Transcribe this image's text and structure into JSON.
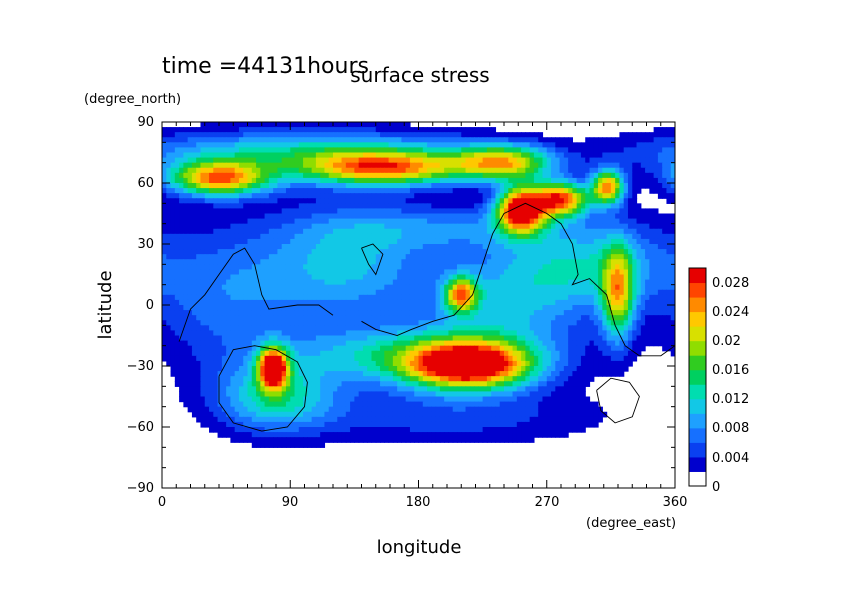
{
  "chart_data": {
    "type": "heatmap",
    "title": "surface stress",
    "subtitle": "time =44131hours",
    "xlabel": "longitude",
    "ylabel": "latitude",
    "x_unit": "(degree_east)",
    "y_unit": "(degree_north)",
    "xlim": [
      0,
      360
    ],
    "ylim": [
      -90,
      90
    ],
    "x_ticks": [
      "0",
      "90",
      "180",
      "270",
      "360"
    ],
    "y_ticks": [
      "90",
      "60",
      "30",
      "0",
      "−30",
      "−60",
      "−90"
    ],
    "colorbar": {
      "labels": [
        "0.028",
        "0.024",
        "0.02",
        "0.016",
        "0.012",
        "0.008",
        "0.004",
        "0"
      ],
      "levels": [
        0,
        0.002,
        0.004,
        0.006,
        0.008,
        0.01,
        0.012,
        0.014,
        0.016,
        0.018,
        0.02,
        0.022,
        0.024,
        0.026,
        0.028
      ],
      "colors": [
        "#ffffff",
        "#0000cd",
        "#0a40f0",
        "#1670ff",
        "#1ea0ff",
        "#12c8e6",
        "#00ddb0",
        "#00d060",
        "#30cc20",
        "#90dd00",
        "#d8e000",
        "#ffc800",
        "#ff8a00",
        "#ff4500",
        "#e60000"
      ]
    },
    "field_centers": [
      {
        "lon": 40,
        "lat": 62,
        "value": 0.024,
        "sx": 25,
        "sy": 6
      },
      {
        "lon": 155,
        "lat": 67,
        "value": 0.022,
        "sx": 40,
        "sy": 6
      },
      {
        "lon": 240,
        "lat": 70,
        "value": 0.02,
        "sx": 25,
        "sy": 6
      },
      {
        "lon": 100,
        "lat": 75,
        "value": 0.012,
        "sx": 90,
        "sy": 8
      },
      {
        "lon": 252,
        "lat": 47,
        "value": 0.03,
        "sx": 12,
        "sy": 8
      },
      {
        "lon": 280,
        "lat": 52,
        "value": 0.026,
        "sx": 14,
        "sy": 6
      },
      {
        "lon": 313,
        "lat": 58,
        "value": 0.024,
        "sx": 8,
        "sy": 6
      },
      {
        "lon": 78,
        "lat": -31,
        "value": 0.03,
        "sx": 7,
        "sy": 7
      },
      {
        "lon": 215,
        "lat": -30,
        "value": 0.028,
        "sx": 30,
        "sy": 8
      },
      {
        "lon": 175,
        "lat": -25,
        "value": 0.012,
        "sx": 60,
        "sy": 10
      },
      {
        "lon": 210,
        "lat": 5,
        "value": 0.02,
        "sx": 8,
        "sy": 6
      },
      {
        "lon": 320,
        "lat": 5,
        "value": 0.018,
        "sx": 8,
        "sy": 16
      },
      {
        "lon": 130,
        "lat": 20,
        "value": 0.01,
        "sx": 40,
        "sy": 20
      },
      {
        "lon": 300,
        "lat": 20,
        "value": 0.01,
        "sx": 40,
        "sy": 15
      },
      {
        "lon": 45,
        "lat": 5,
        "value": 0.007,
        "sx": 40,
        "sy": 25
      },
      {
        "lon": 240,
        "lat": 0,
        "value": 0.009,
        "sx": 40,
        "sy": 20
      },
      {
        "lon": 80,
        "lat": -45,
        "value": 0.012,
        "sx": 30,
        "sy": 12
      },
      {
        "lon": 200,
        "lat": -55,
        "value": 0.005,
        "sx": 80,
        "sy": 10
      },
      {
        "lon": 200,
        "lat": 38,
        "value": 0.006,
        "sx": 60,
        "sy": 8
      }
    ],
    "outlines": [
      [
        [
          12,
          -18
        ],
        [
          20,
          -2
        ],
        [
          30,
          5
        ],
        [
          40,
          15
        ],
        [
          50,
          25
        ],
        [
          58,
          28
        ],
        [
          65,
          20
        ],
        [
          70,
          5
        ],
        [
          75,
          -2
        ],
        [
          95,
          0
        ],
        [
          110,
          0
        ],
        [
          120,
          -5
        ]
      ],
      [
        [
          140,
          28
        ],
        [
          145,
          20
        ],
        [
          150,
          15
        ],
        [
          155,
          25
        ],
        [
          148,
          30
        ],
        [
          140,
          28
        ]
      ],
      [
        [
          140,
          -8
        ],
        [
          150,
          -12
        ],
        [
          165,
          -15
        ],
        [
          175,
          -12
        ],
        [
          190,
          -8
        ],
        [
          205,
          -5
        ],
        [
          218,
          5
        ],
        [
          225,
          20
        ],
        [
          232,
          35
        ],
        [
          240,
          45
        ],
        [
          255,
          50
        ],
        [
          270,
          45
        ],
        [
          280,
          40
        ],
        [
          288,
          30
        ],
        [
          292,
          15
        ],
        [
          288,
          10
        ],
        [
          300,
          13
        ],
        [
          312,
          5
        ],
        [
          318,
          -10
        ],
        [
          325,
          -20
        ],
        [
          335,
          -25
        ],
        [
          350,
          -25
        ],
        [
          360,
          -20
        ]
      ],
      [
        [
          40,
          -35
        ],
        [
          50,
          -22
        ],
        [
          65,
          -20
        ],
        [
          80,
          -22
        ],
        [
          95,
          -28
        ],
        [
          102,
          -38
        ],
        [
          100,
          -50
        ],
        [
          88,
          -60
        ],
        [
          70,
          -62
        ],
        [
          50,
          -58
        ],
        [
          40,
          -48
        ],
        [
          40,
          -35
        ]
      ],
      [
        [
          305,
          -42
        ],
        [
          315,
          -36
        ],
        [
          328,
          -38
        ],
        [
          335,
          -45
        ],
        [
          330,
          -55
        ],
        [
          318,
          -58
        ],
        [
          308,
          -52
        ],
        [
          305,
          -42
        ]
      ]
    ]
  }
}
